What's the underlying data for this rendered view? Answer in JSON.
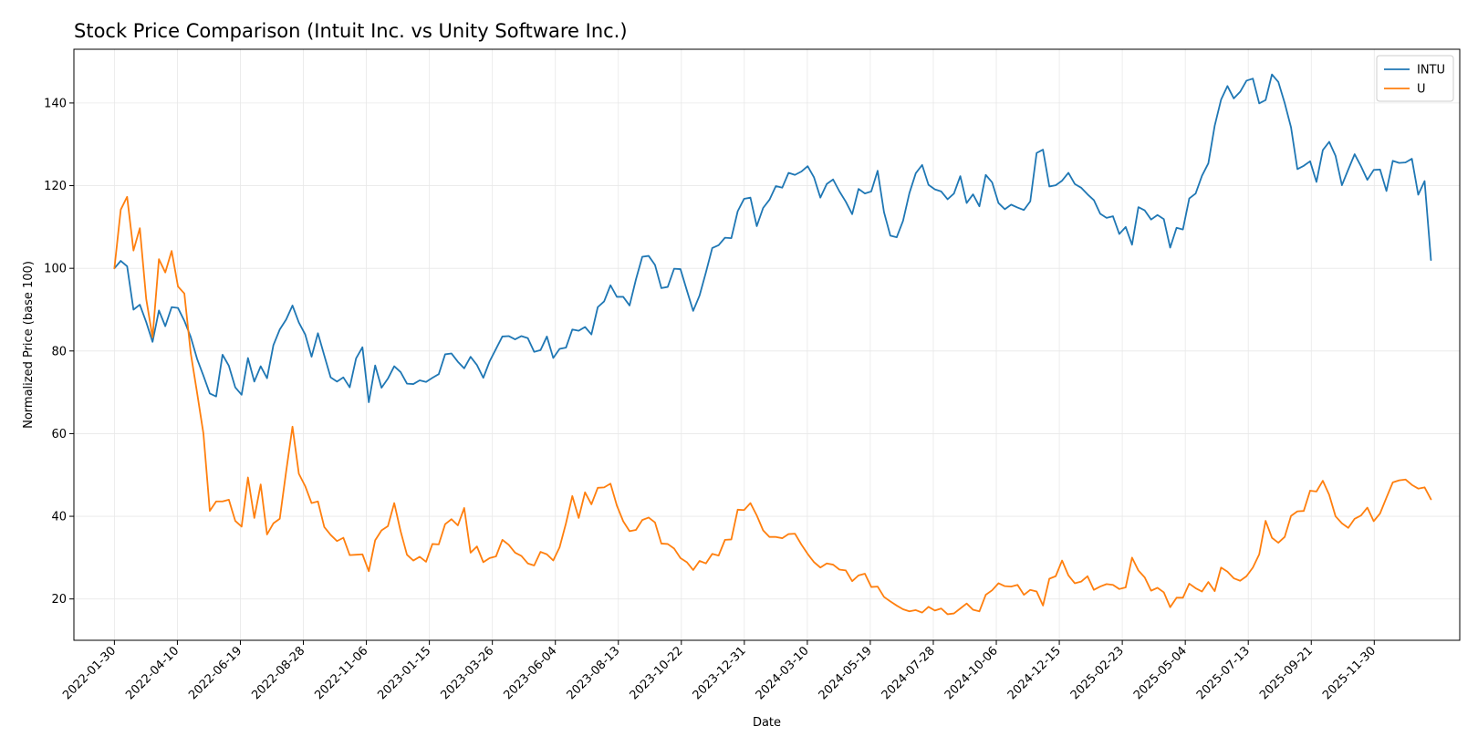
{
  "chart_data": {
    "type": "line",
    "title": "Stock Price Comparison (Intuit Inc. vs Unity Software Inc.)",
    "xlabel": "Date",
    "ylabel": "Normalized Price (base 100)",
    "x_start": "2022-01-30",
    "x_end": "2026-02-01",
    "xlim": [
      "2021-12-16",
      "2026-03-05"
    ],
    "ylim": [
      10,
      153
    ],
    "xticks": [
      "2022-01-30",
      "2022-04-10",
      "2022-06-19",
      "2022-08-28",
      "2022-11-06",
      "2023-01-15",
      "2023-03-26",
      "2023-06-04",
      "2023-08-13",
      "2023-10-22",
      "2023-12-31",
      "2024-03-10",
      "2024-05-19",
      "2024-07-28",
      "2024-10-06",
      "2024-12-15",
      "2025-02-23",
      "2025-05-04",
      "2025-07-13",
      "2025-09-21",
      "2025-11-30"
    ],
    "yticks": [
      20,
      40,
      60,
      80,
      100,
      120,
      140
    ],
    "grid": true,
    "legend_position": "top-right",
    "series": [
      {
        "name": "INTU",
        "color": "#1f77b4",
        "values": [
          100,
          101.8,
          100.5,
          90,
          91.2,
          87,
          82.2,
          89.8,
          86,
          90.6,
          90.4,
          87.3,
          83.4,
          78.1,
          74,
          69.7,
          69,
          79.1,
          76.4,
          71.2,
          69.4,
          78.3,
          72.6,
          76.3,
          73.4,
          81.4,
          85.2,
          87.6,
          91,
          86.9,
          84,
          78.6,
          84.3,
          78.9,
          73.6,
          72.6,
          73.6,
          71.2,
          78.2,
          80.9,
          67.6,
          76.5,
          71.1,
          73.3,
          76.3,
          74.9,
          72.1,
          72,
          72.9,
          72.5,
          73.5,
          74.4,
          79.2,
          79.4,
          77.4,
          75.8,
          78.6,
          76.6,
          73.5,
          77.5,
          80.5,
          83.5,
          83.6,
          82.8,
          83.6,
          83.1,
          79.8,
          80.2,
          83.5,
          78.3,
          80.5,
          80.8,
          85.2,
          84.9,
          85.8,
          84,
          90.6,
          92,
          95.9,
          93.1,
          93.1,
          91,
          97.3,
          102.8,
          103,
          100.8,
          95.2,
          95.5,
          99.9,
          99.8,
          94.7,
          89.7,
          93.4,
          99,
          104.9,
          105.6,
          107.4,
          107.3,
          113.8,
          116.8,
          117.1,
          110.2,
          114.6,
          116.6,
          119.9,
          119.5,
          123.1,
          122.6,
          123.4,
          124.7,
          122,
          117.1,
          120.4,
          121.5,
          118.6,
          116.1,
          113.1,
          119.2,
          118.1,
          118.6,
          123.6,
          113.6,
          107.9,
          107.5,
          111.5,
          118.2,
          123,
          125,
          120.2,
          119.1,
          118.6,
          116.7,
          118.1,
          122.3,
          115.8,
          117.9,
          115,
          122.6,
          120.8,
          115.8,
          114.3,
          115.4,
          114.7,
          114.1,
          116.2,
          127.9,
          128.7,
          119.8,
          120.1,
          121.2,
          123.1,
          120.4,
          119.5,
          117.9,
          116.5,
          113.2,
          112.2,
          112.6,
          108.3,
          110,
          105.7,
          114.8,
          114,
          111.8,
          112.9,
          111.9,
          105,
          109.8,
          109.4,
          116.9,
          118.1,
          122.4,
          125.4,
          134.5,
          140.8,
          144.1,
          141.1,
          142.7,
          145.4,
          145.9,
          139.9,
          140.7,
          146.9,
          145.1,
          140,
          134.1,
          124,
          124.8,
          125.9,
          120.9,
          128.6,
          130.6,
          127.2,
          120.1,
          123.9,
          127.6,
          124.7,
          121.4,
          123.8,
          123.9,
          118.7,
          126,
          125.5,
          125.6,
          126.5,
          117.8,
          121.1,
          102
        ]
      },
      {
        "name": "U",
        "color": "#ff7f0e",
        "values": [
          100,
          114.2,
          117.3,
          104.3,
          109.7,
          92.6,
          83.3,
          102.2,
          99,
          104.2,
          95.6,
          93.9,
          79.5,
          69.9,
          60,
          41.3,
          43.6,
          43.6,
          44,
          38.9,
          37.5,
          49.4,
          39.6,
          47.7,
          35.6,
          38.3,
          39.4,
          50.8,
          61.7,
          50.3,
          47.3,
          43.2,
          43.6,
          37.4,
          35.5,
          34,
          34.8,
          30.6,
          30.7,
          30.8,
          26.7,
          34.2,
          36.6,
          37.6,
          43.2,
          36.4,
          30.7,
          29.3,
          30.2,
          29,
          33.3,
          33.2,
          38.1,
          39.3,
          37.8,
          42,
          31.2,
          32.7,
          28.9,
          29.9,
          30.3,
          34.3,
          33.1,
          31.2,
          30.4,
          28.6,
          28.1,
          31.4,
          30.8,
          29.3,
          32.5,
          38.3,
          44.9,
          39.6,
          45.8,
          42.9,
          46.9,
          47,
          47.9,
          42.6,
          38.8,
          36.4,
          36.7,
          39.1,
          39.7,
          38.5,
          33.4,
          33.3,
          32.2,
          29.9,
          28.9,
          27,
          29.2,
          28.6,
          30.9,
          30.5,
          34.3,
          34.4,
          41.6,
          41.5,
          43.2,
          40.2,
          36.6,
          35,
          35,
          34.7,
          35.7,
          35.8,
          33.2,
          30.9,
          28.9,
          27.6,
          28.6,
          28.3,
          27.1,
          26.9,
          24.3,
          25.7,
          26.1,
          22.9,
          23,
          20.5,
          19.4,
          18.4,
          17.5,
          17,
          17.3,
          16.7,
          18.1,
          17.2,
          17.7,
          16.3,
          16.5,
          17.7,
          18.9,
          17.4,
          17,
          21,
          22.1,
          23.8,
          23.1,
          23,
          23.4,
          21,
          22.2,
          21.8,
          18.4,
          24.9,
          25.5,
          29.3,
          25.7,
          23.8,
          24.2,
          25.5,
          22.2,
          23,
          23.6,
          23.4,
          22.4,
          22.8,
          30,
          26.9,
          25.2,
          22,
          22.7,
          21.6,
          18,
          20.3,
          20.3,
          23.7,
          22.6,
          21.8,
          24.1,
          21.9,
          27.6,
          26.6,
          25,
          24.4,
          25.5,
          27.6,
          30.8,
          38.9,
          34.8,
          33.6,
          35,
          40.1,
          41.2,
          41.3,
          46.2,
          46,
          48.6,
          45.2,
          40,
          38.3,
          37.2,
          39.4,
          40.2,
          42.1,
          38.8,
          40.7,
          44.5,
          48.2,
          48.7,
          48.9,
          47.6,
          46.7,
          47,
          44.1
        ]
      }
    ]
  }
}
